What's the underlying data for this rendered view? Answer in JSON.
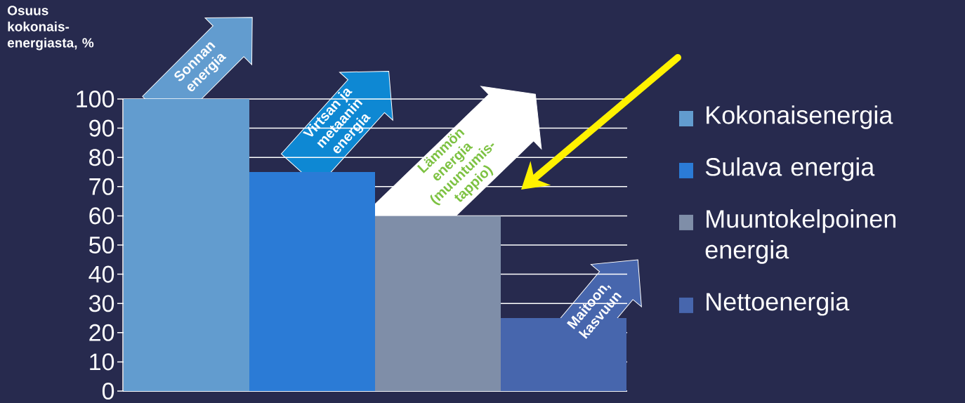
{
  "chart_data": {
    "type": "bar",
    "ylabel": "Osuus kokonais-energiasta, %",
    "categories": [
      null
    ],
    "series": [
      {
        "name": "Kokonaisenergia",
        "color": "#629ccf",
        "values": [
          100
        ]
      },
      {
        "name": "Sulava energia",
        "color": "#2b7bd6",
        "values": [
          75
        ]
      },
      {
        "name": "Muuntokelpoinen energia",
        "color": "#7f8ea8",
        "values": [
          60
        ]
      },
      {
        "name": "Nettoenergia",
        "color": "#4766ad",
        "values": [
          25
        ]
      }
    ],
    "ylim": [
      0,
      100
    ],
    "yticks": [
      0,
      10,
      20,
      30,
      40,
      50,
      60,
      70,
      80,
      90,
      100
    ],
    "grid": "y",
    "legend": "right",
    "annotations": [
      "Sonnan energia",
      "Virtsan ja metaanin energia",
      "Lämmön energia (muuntumis-tappio)",
      "Maitoon, kasvuun"
    ]
  }
}
